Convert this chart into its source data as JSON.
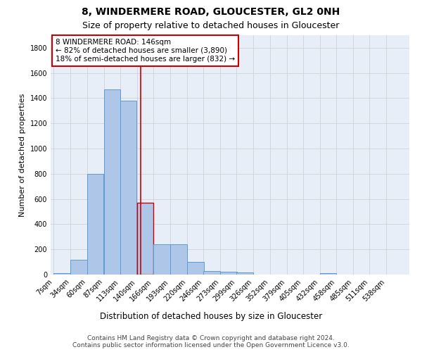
{
  "title": "8, WINDERMERE ROAD, GLOUCESTER, GL2 0NH",
  "subtitle": "Size of property relative to detached houses in Gloucester",
  "xlabel": "Distribution of detached houses by size in Gloucester",
  "ylabel": "Number of detached properties",
  "footer_line1": "Contains HM Land Registry data © Crown copyright and database right 2024.",
  "footer_line2": "Contains public sector information licensed under the Open Government Licence v3.0.",
  "annotation_line1": "8 WINDERMERE ROAD: 146sqm",
  "annotation_line2": "← 82% of detached houses are smaller (3,890)",
  "annotation_line3": "18% of semi-detached houses are larger (832) →",
  "property_size": 146,
  "bin_starts": [
    7,
    34,
    60,
    87,
    113,
    140,
    166,
    193,
    220,
    246,
    273,
    299,
    326,
    352,
    379,
    405,
    432,
    458,
    485,
    511
  ],
  "bin_labels": [
    "7sqm",
    "34sqm",
    "60sqm",
    "87sqm",
    "113sqm",
    "140sqm",
    "166sqm",
    "193sqm",
    "220sqm",
    "246sqm",
    "273sqm",
    "299sqm",
    "326sqm",
    "352sqm",
    "379sqm",
    "405sqm",
    "432sqm",
    "458sqm",
    "485sqm",
    "511sqm",
    "538sqm"
  ],
  "bar_heights": [
    10,
    120,
    800,
    1470,
    1380,
    570,
    240,
    240,
    100,
    30,
    25,
    15,
    0,
    0,
    0,
    0,
    10,
    0,
    0,
    0
  ],
  "bar_color": "#aec6e8",
  "bar_edgecolor": "#5b9bd5",
  "highlight_bar_edgecolor": "#cc0000",
  "vline_color": "#cc0000",
  "vline_x": 146,
  "annotation_box_edgecolor": "#cc0000",
  "annotation_box_facecolor": "#ffffff",
  "ylim": [
    0,
    1900
  ],
  "yticks": [
    0,
    200,
    400,
    600,
    800,
    1000,
    1200,
    1400,
    1600,
    1800
  ],
  "grid_color": "#cccccc",
  "background_color": "#e8eef8",
  "title_fontsize": 10,
  "subtitle_fontsize": 9,
  "xlabel_fontsize": 8.5,
  "ylabel_fontsize": 8,
  "tick_fontsize": 7,
  "annotation_fontsize": 7.5,
  "footer_fontsize": 6.5
}
